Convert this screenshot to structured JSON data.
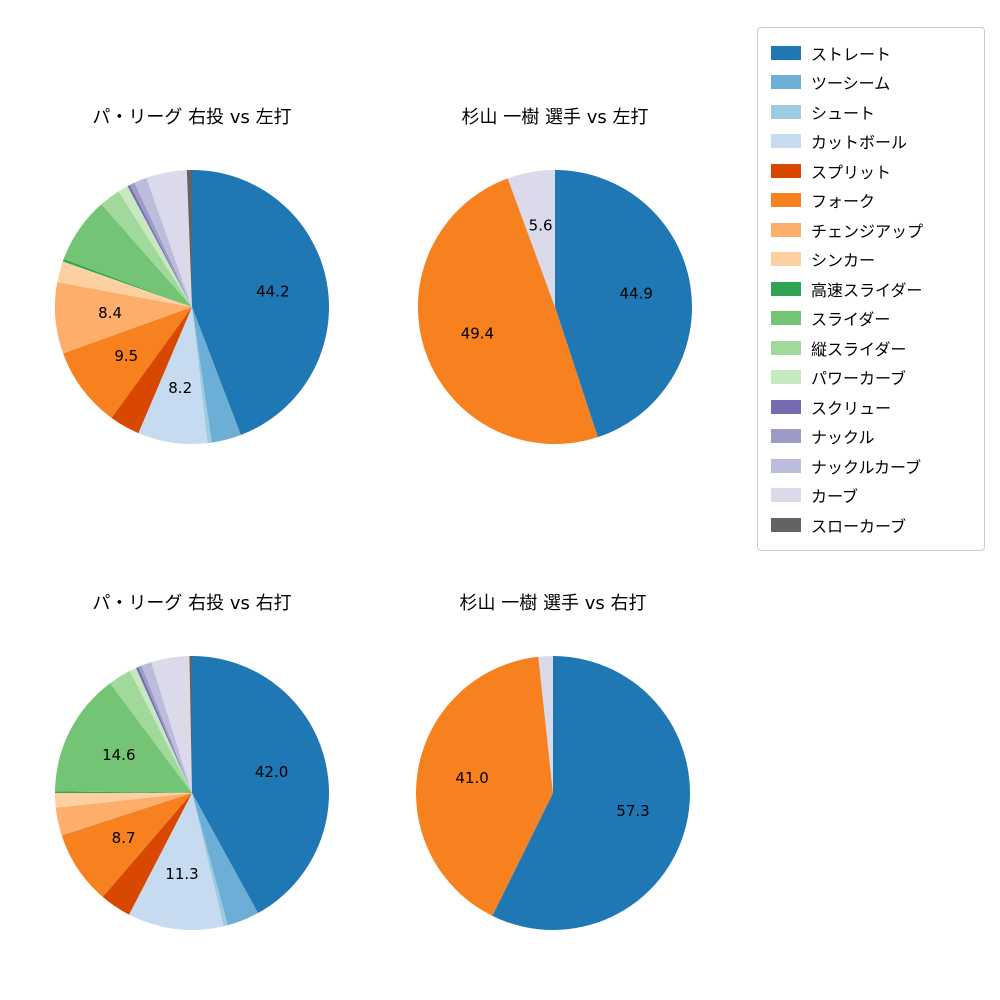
{
  "legend": {
    "items": [
      {
        "label": "ストレート",
        "color": "#1f77b4"
      },
      {
        "label": "ツーシーム",
        "color": "#6baed6"
      },
      {
        "label": "シュート",
        "color": "#9ecae1"
      },
      {
        "label": "カットボール",
        "color": "#c6dbef"
      },
      {
        "label": "スプリット",
        "color": "#d94801"
      },
      {
        "label": "フォーク",
        "color": "#f8811f"
      },
      {
        "label": "チェンジアップ",
        "color": "#fdae6b"
      },
      {
        "label": "シンカー",
        "color": "#fdd0a2"
      },
      {
        "label": "高速スライダー",
        "color": "#31a354"
      },
      {
        "label": "スライダー",
        "color": "#74c476"
      },
      {
        "label": "縦スライダー",
        "color": "#a1d99b"
      },
      {
        "label": "パワーカーブ",
        "color": "#c7e9c0"
      },
      {
        "label": "スクリュー",
        "color": "#756bb1"
      },
      {
        "label": "ナックル",
        "color": "#9e9ac8"
      },
      {
        "label": "ナックルカーブ",
        "color": "#bcbddc"
      },
      {
        "label": "カーブ",
        "color": "#dadaeb"
      },
      {
        "label": "スローカーブ",
        "color": "#636363"
      }
    ]
  },
  "chart_data": [
    {
      "type": "pie",
      "title": "パ・リーグ 右投 vs 左打",
      "categories": [
        "ストレート",
        "ツーシーム",
        "シュート",
        "カットボール",
        "スプリット",
        "フォーク",
        "チェンジアップ",
        "シンカー",
        "高速スライダー",
        "スライダー",
        "縦スライダー",
        "パワーカーブ",
        "スクリュー",
        "ナックル",
        "ナックルカーブ",
        "カーブ",
        "スローカーブ"
      ],
      "values": [
        44.2,
        3.5,
        0.5,
        8.2,
        3.6,
        9.5,
        8.4,
        2.5,
        0.3,
        7.8,
        2.5,
        1.2,
        0.3,
        0.6,
        1.5,
        4.8,
        0.6
      ],
      "labels": [
        "44.2",
        "",
        "",
        "8.2",
        "",
        "9.5",
        "8.4",
        "",
        "",
        "",
        "",
        "",
        "",
        "",
        "",
        "",
        ""
      ]
    },
    {
      "type": "pie",
      "title": "杉山 一樹 選手 vs 左打",
      "categories": [
        "ストレート",
        "フォーク",
        "カーブ"
      ],
      "values": [
        44.9,
        49.4,
        5.6
      ],
      "labels": [
        "44.9",
        "49.4",
        "5.6"
      ]
    },
    {
      "type": "pie",
      "title": "パ・リーグ 右投 vs 右打",
      "categories": [
        "ストレート",
        "ツーシーム",
        "シュート",
        "カットボール",
        "スプリット",
        "フォーク",
        "チェンジアップ",
        "シンカー",
        "高速スライダー",
        "スライダー",
        "縦スライダー",
        "パワーカーブ",
        "スクリュー",
        "ナックル",
        "ナックルカーブ",
        "カーブ",
        "スローカーブ"
      ],
      "values": [
        42.0,
        3.8,
        0.5,
        11.3,
        3.7,
        8.7,
        3.3,
        1.7,
        0.2,
        14.6,
        2.7,
        0.8,
        0.3,
        0.4,
        1.2,
        4.5,
        0.3
      ],
      "labels": [
        "42.0",
        "",
        "",
        "11.3",
        "",
        "8.7",
        "",
        "",
        "",
        "14.6",
        "",
        "",
        "",
        "",
        "",
        "",
        ""
      ]
    },
    {
      "type": "pie",
      "title": "杉山 一樹 選手 vs 右打",
      "categories": [
        "ストレート",
        "フォーク",
        "カーブ"
      ],
      "values": [
        57.3,
        41.0,
        1.7
      ],
      "labels": [
        "57.3",
        "41.0",
        ""
      ]
    }
  ]
}
